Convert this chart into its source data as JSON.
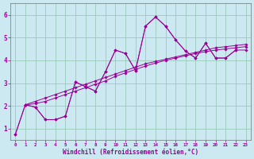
{
  "xlabel": "Windchill (Refroidissement éolien,°C)",
  "ylabel": "",
  "background_color": "#cce8f0",
  "line_color": "#990099",
  "grid_color": "#99ccbb",
  "xlim": [
    -0.5,
    23.5
  ],
  "ylim": [
    0.5,
    6.5
  ],
  "xticks": [
    0,
    1,
    2,
    3,
    4,
    5,
    6,
    7,
    8,
    9,
    10,
    11,
    12,
    13,
    14,
    15,
    16,
    17,
    18,
    19,
    20,
    21,
    22,
    23
  ],
  "yticks": [
    1,
    2,
    3,
    4,
    5,
    6
  ],
  "series": [
    {
      "x": [
        0,
        1,
        2,
        3,
        4,
        5,
        6,
        7,
        8,
        9,
        10,
        11,
        12,
        13,
        14,
        15,
        16,
        17,
        18,
        19,
        20,
        21,
        22
      ],
      "y": [
        0.75,
        2.05,
        1.95,
        1.4,
        1.4,
        1.55,
        3.05,
        2.85,
        2.65,
        3.5,
        4.45,
        4.3,
        3.55,
        5.5,
        5.9,
        5.5,
        4.9,
        4.4,
        4.1,
        4.75,
        4.1,
        4.1,
        4.45
      ]
    },
    {
      "x": [
        1,
        2,
        3,
        4,
        5,
        6,
        7,
        8,
        9,
        10,
        11,
        12,
        13,
        14,
        15,
        16,
        17,
        18,
        19,
        20,
        21,
        22,
        23
      ],
      "y": [
        2.05,
        1.95,
        1.4,
        1.4,
        1.55,
        3.05,
        2.85,
        2.65,
        3.5,
        4.45,
        4.3,
        3.55,
        5.5,
        5.9,
        5.5,
        4.9,
        4.4,
        4.1,
        4.75,
        4.1,
        4.1,
        4.45,
        4.45
      ]
    },
    {
      "x": [
        0,
        1,
        2,
        3,
        4,
        5,
        6,
        7,
        8,
        9,
        10,
        11,
        12,
        13,
        14,
        15,
        16,
        17,
        18,
        19,
        20,
        21,
        22,
        23
      ],
      "y": [
        0.75,
        2.05,
        2.1,
        2.2,
        2.35,
        2.5,
        2.65,
        2.8,
        2.95,
        3.1,
        3.3,
        3.45,
        3.6,
        3.75,
        3.88,
        4.0,
        4.1,
        4.2,
        4.3,
        4.38,
        4.45,
        4.5,
        4.55,
        4.6
      ]
    },
    {
      "x": [
        1,
        2,
        3,
        4,
        5,
        6,
        7,
        8,
        9,
        10,
        11,
        12,
        13,
        14,
        15,
        16,
        17,
        18,
        19,
        20,
        21,
        22,
        23
      ],
      "y": [
        2.05,
        2.2,
        2.35,
        2.5,
        2.65,
        2.8,
        2.95,
        3.1,
        3.25,
        3.4,
        3.55,
        3.7,
        3.85,
        3.95,
        4.05,
        4.15,
        4.25,
        4.35,
        4.45,
        4.55,
        4.6,
        4.65,
        4.7
      ]
    }
  ]
}
